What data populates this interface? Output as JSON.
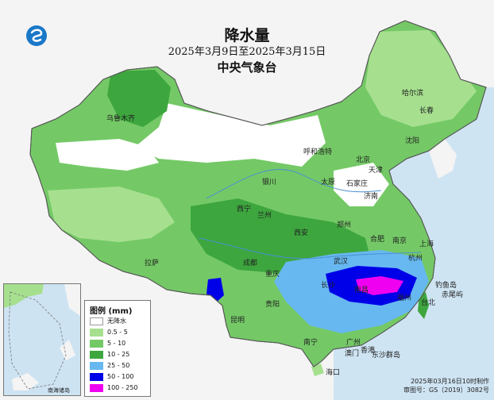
{
  "title": "降水量",
  "subtitle": "2025年3月9日至2025年3月15日",
  "agency": "中央气象台",
  "legend": {
    "title": "图例 (mm)",
    "items": [
      {
        "label": "无降水",
        "color": "#ffffff"
      },
      {
        "label": "0.5 - 5",
        "color": "#a6e08f"
      },
      {
        "label": "5 - 10",
        "color": "#74c966"
      },
      {
        "label": "10 - 25",
        "color": "#3da63e"
      },
      {
        "label": "25 - 50",
        "color": "#67b8f0"
      },
      {
        "label": "50 - 100",
        "color": "#0000e8"
      },
      {
        "label": "100 - 250",
        "color": "#f000f0"
      }
    ]
  },
  "inset_label": "南海诸岛",
  "footer": {
    "issued": "2025年03月16日10时制作",
    "review": "审图号：GS（2019）3082号"
  },
  "cities": [
    "哈尔滨",
    "长春",
    "沈阳",
    "呼和浩特",
    "北京",
    "天津",
    "石家庄",
    "太原",
    "济南",
    "银川",
    "西宁",
    "兰州",
    "郑州",
    "西安",
    "合肥",
    "南京",
    "上海",
    "杭州",
    "武汉",
    "成都",
    "重庆",
    "长沙",
    "南昌",
    "福州",
    "台北",
    "贵阳",
    "昆明",
    "南宁",
    "广州",
    "香港",
    "澳门",
    "海口",
    "拉萨",
    "乌鲁木齐"
  ],
  "island_labels": [
    "东沙群岛",
    "钓鱼岛",
    "赤尾屿"
  ],
  "colors": {
    "sea": "#cfe4f3",
    "none": "#ffffff",
    "light": "#a6e08f",
    "small": "#74c966",
    "moderate": "#3da63e",
    "heavy": "#67b8f0",
    "rainstorm": "#0000e8",
    "severe": "#f000f0"
  }
}
